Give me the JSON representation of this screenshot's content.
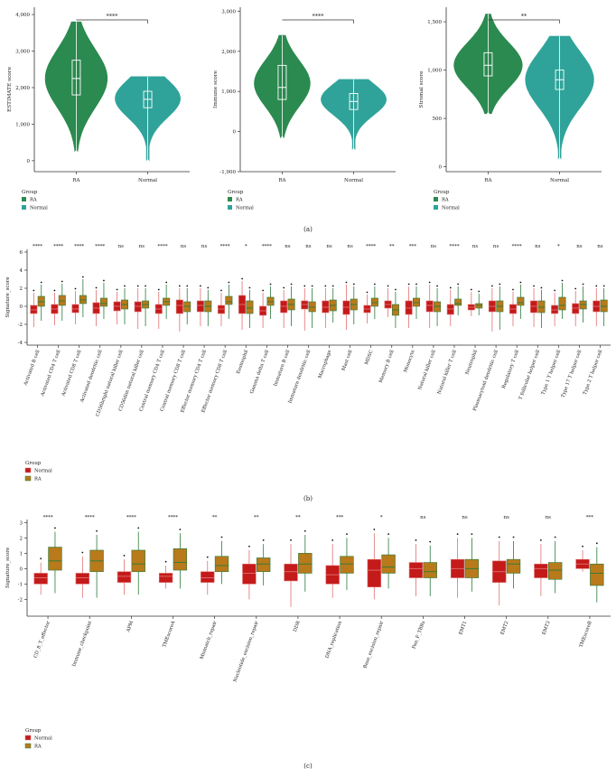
{
  "colors": {
    "ra_violin": "#2a8a4f",
    "normal_violin": "#2fa39a",
    "normal_box": "#c41a1a",
    "ra_box": "#b87a1a",
    "ra_box_border": "#2a7a3a",
    "normal_box_border": "#e07070"
  },
  "panel_a": {
    "label": "(a)",
    "charts": [
      {
        "type": "violin",
        "ylabel": "ESTIMATE score",
        "ylim": [
          -300,
          4200
        ],
        "ticks": [
          0,
          1000,
          2000,
          3000,
          4000
        ],
        "tick_labels": [
          "0",
          "1,000",
          "2,000",
          "3,000",
          "4,000"
        ],
        "categories": [
          "RA",
          "Normal"
        ],
        "significance": "****",
        "series": [
          {
            "name": "RA",
            "min": 250,
            "q1": 1800,
            "median": 2250,
            "q3": 2750,
            "max": 3800,
            "peak": 2250,
            "width": 0.4
          },
          {
            "name": "Normal",
            "min": 0,
            "q1": 1450,
            "median": 1680,
            "q3": 1900,
            "max": 2300,
            "peak": 1700,
            "width": 0.42
          }
        ],
        "legend_title": "Group",
        "legend": [
          "RA",
          "Normal"
        ]
      },
      {
        "type": "violin",
        "ylabel": "Immune score",
        "ylim": [
          -1000,
          3100
        ],
        "ticks": [
          -1000,
          0,
          1000,
          2000,
          3000
        ],
        "tick_labels": [
          "-1,000",
          "0",
          "1,000",
          "2,000",
          "3,000"
        ],
        "categories": [
          "RA",
          "Normal"
        ],
        "significance": "****",
        "series": [
          {
            "name": "RA",
            "min": -150,
            "q1": 800,
            "median": 1100,
            "q3": 1650,
            "max": 2400,
            "peak": 1200,
            "width": 0.36
          },
          {
            "name": "Normal",
            "min": -450,
            "q1": 550,
            "median": 750,
            "q3": 950,
            "max": 1300,
            "peak": 800,
            "width": 0.42
          }
        ],
        "legend_title": "Group",
        "legend": [
          "RA",
          "Normal"
        ]
      },
      {
        "type": "violin",
        "ylabel": "Stromal score",
        "ylim": [
          -50,
          1650
        ],
        "ticks": [
          0,
          500,
          1000,
          1500
        ],
        "tick_labels": [
          "0",
          "500",
          "1,000",
          "1,500"
        ],
        "categories": [
          "RA",
          "Normal"
        ],
        "significance": "**",
        "series": [
          {
            "name": "RA",
            "min": 550,
            "q1": 940,
            "median": 1050,
            "q3": 1180,
            "max": 1580,
            "peak": 1050,
            "width": 0.44
          },
          {
            "name": "Normal",
            "min": 80,
            "q1": 800,
            "median": 900,
            "q3": 1000,
            "max": 1350,
            "peak": 900,
            "width": 0.44
          }
        ],
        "legend_title": "Group",
        "legend": [
          "RA",
          "Normal"
        ]
      }
    ]
  },
  "panel_b": {
    "label": "(b)",
    "chart_data": {
      "type": "boxplot",
      "ylabel": "Signature_score",
      "ylim": [
        -4.3,
        6.3
      ],
      "ticks": [
        -4,
        -2,
        0,
        2,
        4,
        6
      ],
      "tick_labels": [
        "-4",
        "-2",
        "0",
        "2",
        "4",
        "6"
      ],
      "categories": [
        "Activated B cell",
        "Activated CD4 T cell",
        "Activated CD8 T cell",
        "Activated dendritic cell",
        "CD56bright natural killer cell",
        "CD56dim natural killer cell",
        "Central memory CD4 T cell",
        "Central memory CD8 T cell",
        "Effector memory CD4 T cell",
        "Effector memory CD8 T cell",
        "Eosinophil",
        "Gamma delta T cell",
        "Immature B cell",
        "Immature dendritic cell",
        "Macrophage",
        "Mast cell",
        "MDSC",
        "Memory B cell",
        "Monocyte",
        "Natural killer cell",
        "Natural killer T cell",
        "Neutrophil",
        "Plasmacytoid dendritic cell",
        "Regulatory T cell",
        "T follicular helper cell",
        "Type 1 T helper cell",
        "Type 17 T helper cell",
        "Type 2 T helper cell"
      ],
      "significance": [
        "****",
        "****",
        "****",
        "****",
        "ns",
        "ns",
        "****",
        "ns",
        "ns",
        "****",
        "*",
        "****",
        "ns",
        "ns",
        "ns",
        "ns",
        "****",
        "**",
        "***",
        "ns",
        "****",
        "ns",
        "ns",
        "****",
        "ns",
        "*",
        "ns",
        "ns"
      ],
      "series": [
        {
          "name": "Normal",
          "boxes": [
            [
              -2.3,
              -0.8,
              -0.4,
              0.1,
              1.5
            ],
            [
              -2.1,
              -0.8,
              -0.3,
              0.2,
              1.5
            ],
            [
              -2.0,
              -0.7,
              -0.3,
              0.2,
              1.7
            ],
            [
              -2.2,
              -0.8,
              -0.2,
              0.4,
              1.8
            ],
            [
              -2.0,
              -0.5,
              0,
              0.5,
              1.6
            ],
            [
              -2.5,
              -0.6,
              0,
              0.5,
              2.0
            ],
            [
              -2.5,
              -0.8,
              -0.3,
              0.2,
              1.6
            ],
            [
              -2.8,
              -0.8,
              0.1,
              0.7,
              2.0
            ],
            [
              -2.2,
              -0.6,
              0.1,
              0.6,
              2.0
            ],
            [
              -2.2,
              -0.8,
              -0.3,
              0.1,
              1.5
            ],
            [
              -2.6,
              -0.8,
              0.2,
              1.2,
              2.8
            ],
            [
              -2.4,
              -1.0,
              -0.5,
              0,
              1.5
            ],
            [
              -2.4,
              -0.7,
              0,
              0.6,
              1.8
            ],
            [
              -2.7,
              -0.3,
              0.2,
              0.6,
              2.0
            ],
            [
              -2.4,
              -0.7,
              -0.1,
              0.6,
              2.0
            ],
            [
              -2.6,
              -0.9,
              -0.1,
              0.6,
              2.4
            ],
            [
              -1.9,
              -0.7,
              -0.3,
              0.1,
              1.3
            ],
            [
              -1.2,
              -0.2,
              0.2,
              0.6,
              2.0
            ],
            [
              -2.4,
              -0.9,
              -0.2,
              0.6,
              2.2
            ],
            [
              -2.4,
              -0.6,
              0.1,
              0.6,
              2.4
            ],
            [
              -2.2,
              -0.9,
              -0.3,
              0.2,
              1.8
            ],
            [
              -1.1,
              -0.4,
              -0.1,
              0.2,
              1.6
            ],
            [
              -2.8,
              -0.6,
              0,
              0.6,
              2.0
            ],
            [
              -2.2,
              -0.8,
              -0.3,
              0.2,
              1.6
            ],
            [
              -2.3,
              -0.7,
              0,
              0.6,
              2.0
            ],
            [
              -2.2,
              -0.8,
              -0.4,
              0.1,
              1.5
            ],
            [
              -2.2,
              -0.8,
              -0.2,
              0.3,
              1.7
            ],
            [
              -2.2,
              -0.6,
              0,
              0.6,
              2.0
            ]
          ]
        },
        {
          "name": "RA",
          "boxes": [
            [
              -1.6,
              0,
              0.5,
              1.1,
              2.4
            ],
            [
              -1.6,
              0.1,
              0.6,
              1.2,
              2.5
            ],
            [
              -1.2,
              0.3,
              0.7,
              1.2,
              3.0
            ],
            [
              -1.4,
              0,
              0.3,
              0.9,
              2.6
            ],
            [
              -2.0,
              -0.3,
              0.2,
              0.7,
              2.0
            ],
            [
              -2.2,
              -0.2,
              0.2,
              0.6,
              2.0
            ],
            [
              -1.4,
              0.1,
              0.5,
              0.9,
              2.4
            ],
            [
              -2.0,
              -0.6,
              0,
              0.5,
              2.0
            ],
            [
              -2.2,
              -0.6,
              0,
              0.6,
              1.8
            ],
            [
              -1.4,
              0.2,
              0.5,
              1.1,
              2.4
            ],
            [
              -2.4,
              -0.8,
              -0.2,
              0.6,
              1.8
            ],
            [
              -1.4,
              0.1,
              0.5,
              1.0,
              2.2
            ],
            [
              -2.2,
              -0.4,
              0.2,
              0.8,
              2.2
            ],
            [
              -2.4,
              -0.6,
              -0.1,
              0.5,
              2.0
            ],
            [
              -1.8,
              -0.5,
              0.1,
              0.7,
              2.0
            ],
            [
              -2.0,
              -0.4,
              0.2,
              0.8,
              2.2
            ],
            [
              -1.4,
              0,
              0.4,
              0.9,
              2.2
            ],
            [
              -2.4,
              -1.0,
              -0.4,
              0.2,
              1.6
            ],
            [
              -1.4,
              0,
              0.4,
              0.9,
              2.2
            ],
            [
              -2.2,
              -0.6,
              0,
              0.5,
              2.0
            ],
            [
              -1.0,
              0.1,
              0.3,
              0.8,
              2.2
            ],
            [
              -1.0,
              -0.2,
              0.1,
              0.3,
              1.4
            ],
            [
              -2.6,
              -0.6,
              0,
              0.6,
              2.2
            ],
            [
              -1.4,
              0.1,
              0.4,
              1.0,
              2.4
            ],
            [
              -2.4,
              -0.7,
              -0.1,
              0.6,
              1.8
            ],
            [
              -1.4,
              -0.4,
              0.1,
              1.0,
              2.6
            ],
            [
              -1.8,
              -0.3,
              0.2,
              0.6,
              2.2
            ],
            [
              -2.2,
              -0.6,
              0,
              0.7,
              2.0
            ]
          ]
        }
      ],
      "legend_title": "Group",
      "legend": [
        "Normal",
        "RA"
      ]
    }
  },
  "panel_c": {
    "label": "(c)",
    "chart_data": {
      "type": "boxplot",
      "ylabel": "Signature_score",
      "ylim": [
        -3.1,
        3.2
      ],
      "ticks": [
        -2,
        -1,
        0,
        1,
        2,
        3
      ],
      "tick_labels": [
        "-2",
        "-1",
        "0",
        "1",
        "2",
        "3"
      ],
      "categories": [
        "CD_8_T_effector",
        "Immune_checkpoint",
        "APM",
        "TMEscoreA",
        "Mismatch_repair",
        "Nucleotide_excision_repair",
        "DDR",
        "DNA_replication",
        "Base_excision_repair",
        "Pan_F_TBRs",
        "EMT1",
        "EMT2",
        "EMT3",
        "TMEscoreB"
      ],
      "significance": [
        "****",
        "****",
        "****",
        "****",
        "**",
        "**",
        "**",
        "***",
        "*",
        "ns",
        "ns",
        "ns",
        "ns",
        "***"
      ],
      "series": [
        {
          "name": "Normal",
          "boxes": [
            [
              -1.7,
              -1.0,
              -0.6,
              -0.3,
              0.4
            ],
            [
              -1.9,
              -1.0,
              -0.6,
              -0.3,
              0.8
            ],
            [
              -1.7,
              -0.9,
              -0.5,
              -0.2,
              0.6
            ],
            [
              -1.3,
              -0.9,
              -0.5,
              -0.3,
              0.2
            ],
            [
              -1.7,
              -0.9,
              -0.6,
              -0.2,
              0.5
            ],
            [
              -2.0,
              -1.0,
              -0.3,
              0.3,
              1.2
            ],
            [
              -2.5,
              -0.8,
              -0.2,
              0.3,
              1.6
            ],
            [
              -1.9,
              -1.0,
              -0.4,
              0.2,
              1.6
            ],
            [
              -2.0,
              -1.2,
              -0.1,
              0.6,
              2.3
            ],
            [
              -1.8,
              -0.6,
              0,
              0.4,
              1.6
            ],
            [
              -1.9,
              -0.6,
              0,
              0.6,
              2.0
            ],
            [
              -2.4,
              -0.9,
              -0.2,
              0.5,
              1.8
            ],
            [
              -1.8,
              -0.6,
              0,
              0.3,
              1.6
            ],
            [
              -0.2,
              0,
              0.3,
              0.6,
              1.2
            ]
          ]
        },
        {
          "name": "RA",
          "boxes": [
            [
              -1.6,
              -0.1,
              0.5,
              1.4,
              2.4
            ],
            [
              -1.9,
              -0.2,
              0.5,
              1.2,
              2.2
            ],
            [
              -1.7,
              -0.2,
              0.3,
              1.2,
              2.4
            ],
            [
              -1.3,
              -0.1,
              0.4,
              1.3,
              2.3
            ],
            [
              -1.0,
              -0.2,
              0.2,
              0.8,
              1.8
            ],
            [
              -1.1,
              -0.2,
              0.3,
              0.7,
              1.6
            ],
            [
              -1.5,
              -0.3,
              0.3,
              1.0,
              2.2
            ],
            [
              -1.4,
              -0.3,
              0.3,
              0.8,
              2.0
            ],
            [
              -1.3,
              -0.3,
              0.1,
              0.9,
              2.0
            ],
            [
              -1.8,
              -0.6,
              -0.2,
              0.4,
              1.5
            ],
            [
              -1.5,
              -0.6,
              0,
              0.6,
              2.0
            ],
            [
              -1.3,
              -0.3,
              0.3,
              0.6,
              1.8
            ],
            [
              -1.6,
              -0.7,
              -0.1,
              0.4,
              1.8
            ],
            [
              -2.2,
              -1.1,
              -0.3,
              0.3,
              1.4
            ]
          ]
        }
      ],
      "legend_title": "Group",
      "legend": [
        "Normal",
        "RA"
      ]
    }
  }
}
